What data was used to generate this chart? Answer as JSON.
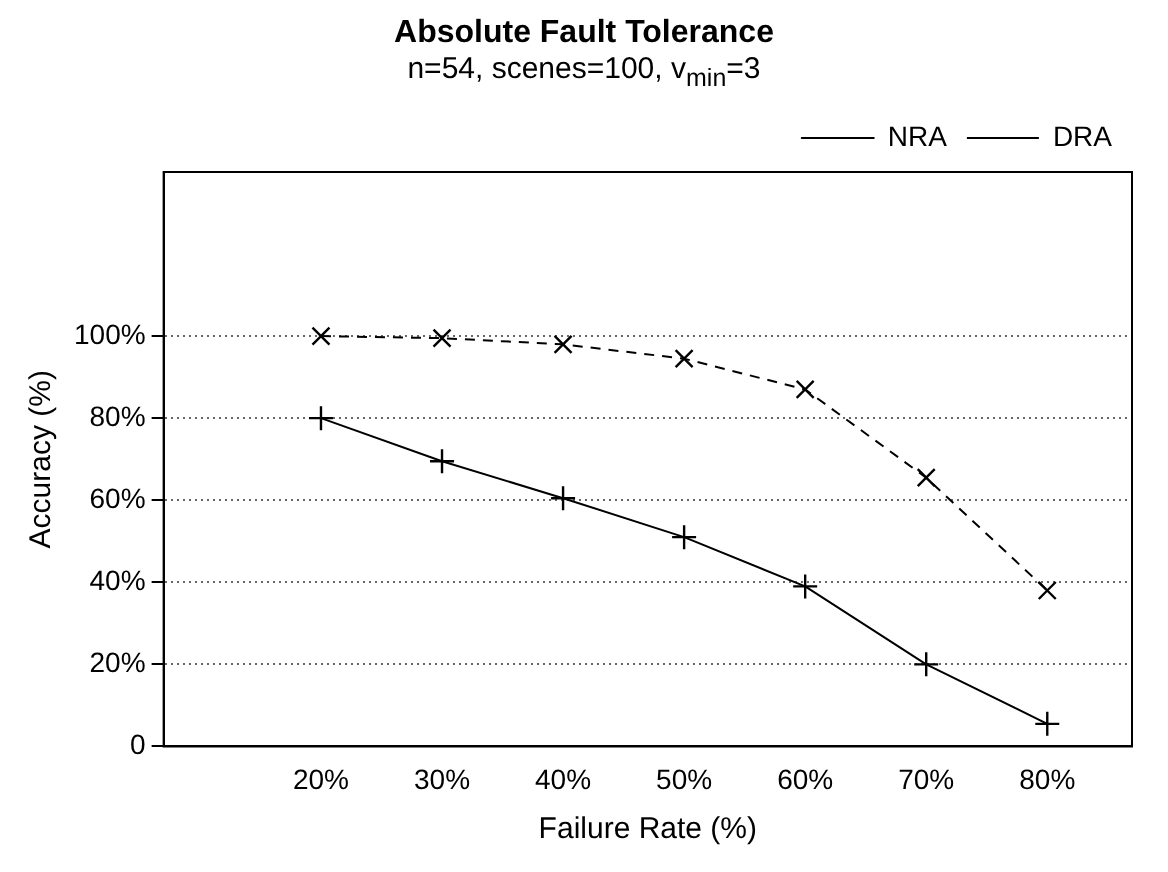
{
  "chart_data": {
    "type": "line",
    "title": "Absolute Fault Tolerance",
    "subtitle": "n=54, scenes=100, v$_{min}$=3",
    "xlabel": "Failure Rate (%)",
    "ylabel": "Accuracy (%)",
    "x": [
      20,
      30,
      40,
      50,
      60,
      70,
      80
    ],
    "series": [
      {
        "name": "NRA",
        "color": "#000000",
        "marker": "plus",
        "line_style": "solid",
        "values": [
          80,
          69.5,
          60.5,
          51,
          39,
          20,
          5.5
        ]
      },
      {
        "name": "DRA",
        "color": "#000000",
        "marker": "cross",
        "line_style": "dashed",
        "values": [
          100,
          99.5,
          98,
          94.5,
          87,
          65.5,
          38
        ]
      }
    ],
    "xlim": [
      7,
      87
    ],
    "xticks": [
      {
        "value": 20,
        "label": "20%"
      },
      {
        "value": 30,
        "label": "30%"
      },
      {
        "value": 40,
        "label": "40%"
      },
      {
        "value": 50,
        "label": "50%"
      },
      {
        "value": 60,
        "label": "60%"
      },
      {
        "value": 70,
        "label": "70%"
      },
      {
        "value": 80,
        "label": "80%"
      }
    ],
    "ylim": [
      0,
      140
    ],
    "yticks": [
      0,
      {
        "value": 20,
        "label": "20%"
      },
      {
        "value": 40,
        "label": "40%"
      },
      {
        "value": 60,
        "label": "60%"
      },
      {
        "value": 80,
        "label": "80%"
      },
      {
        "value": 100,
        "label": "100%"
      }
    ],
    "grid": "y",
    "legend": "top right"
  }
}
